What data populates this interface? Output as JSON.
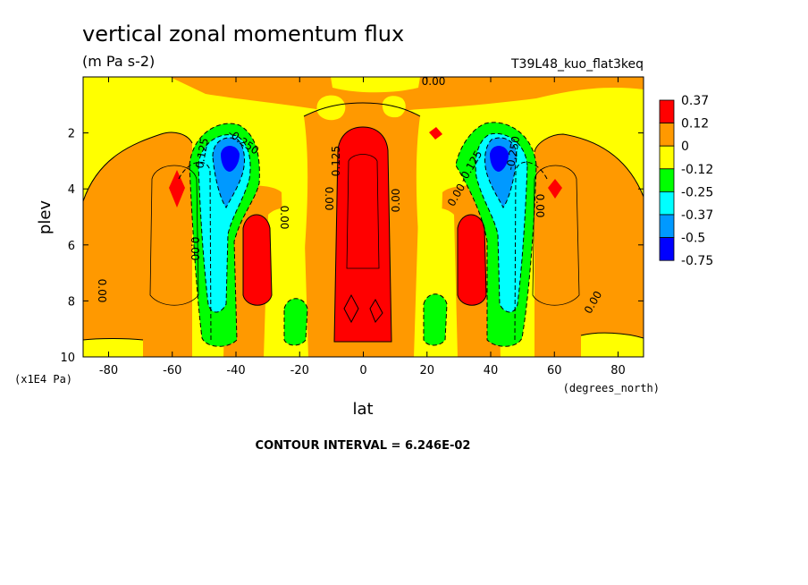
{
  "chart_data": {
    "type": "heatmap",
    "title": "vertical zonal momentum flux",
    "subtitle": "(m Pa s-2)",
    "run_label": "T39L48_kuo_flat3keq",
    "xlabel": "lat",
    "x_units": "(degrees_north)",
    "ylabel": "plev",
    "y_units": "(x1E4 Pa)",
    "xlim": [
      -88,
      88
    ],
    "ylim": [
      10,
      0
    ],
    "x_ticks": [
      "-80",
      "-60",
      "-40",
      "-20",
      "0",
      "20",
      "40",
      "60",
      "80"
    ],
    "y_ticks": [
      "2",
      "4",
      "6",
      "8",
      "10"
    ],
    "contour_interval_text": "CONTOUR INTERVAL = 6.246E-02",
    "contour_labels": [
      "0.00",
      "0.125",
      "-0.250",
      "0.00",
      "0.00",
      "0.00",
      "0.00",
      "0.125",
      "0.00",
      "0.00",
      "-0.125",
      "-0.250",
      "0.00",
      "0.00",
      "0.00",
      "0.00"
    ],
    "colorbar": {
      "levels": [
        "0.37",
        "0.12",
        "0",
        "-0.12",
        "-0.25",
        "-0.37",
        "-0.5",
        "-0.75"
      ],
      "colors": [
        "#ff0000",
        "#ff9900",
        "#ffff00",
        "#00ff00",
        "#00ffff",
        "#0099ff",
        "#0000ff"
      ]
    },
    "features": [
      {
        "name": "equatorial positive column",
        "lat": 0,
        "plev": [
          2,
          9.5
        ],
        "value": 0.37
      },
      {
        "name": "SH positive core",
        "lat": -35,
        "plev": [
          5,
          8.5
        ],
        "value": 0.37
      },
      {
        "name": "NH positive core",
        "lat": 34,
        "plev": [
          5,
          8.5
        ],
        "value": 0.37
      },
      {
        "name": "SH negative jet",
        "lat": -42,
        "plev": [
          2,
          9.5
        ],
        "value": -0.5
      },
      {
        "name": "NH negative jet",
        "lat": 44,
        "plev": [
          2,
          9.5
        ],
        "value": -0.5
      }
    ]
  }
}
